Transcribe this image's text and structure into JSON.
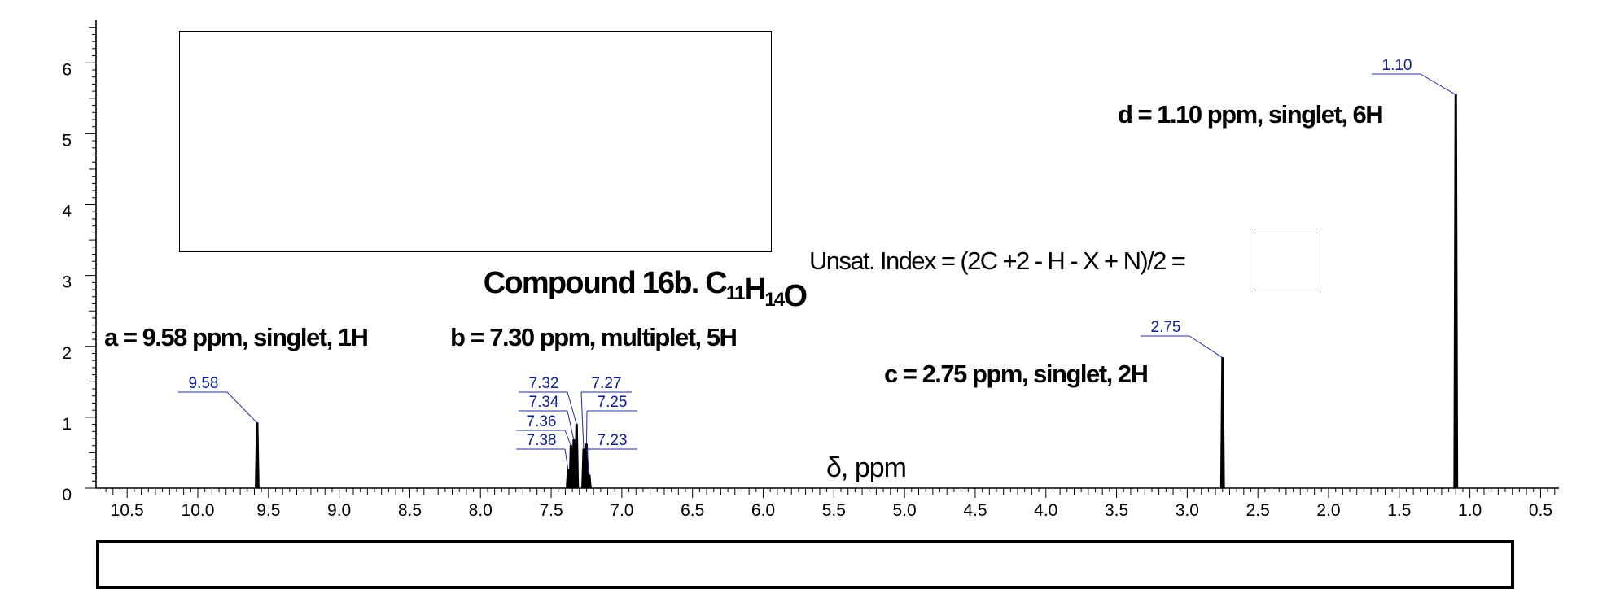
{
  "chart_data": {
    "type": "line",
    "title": "Compound 16b.",
    "formula": [
      {
        "t": "C",
        "sub": "11"
      },
      {
        "t": "H",
        "sub": "14"
      },
      {
        "t": "O",
        "sub": ""
      }
    ],
    "xlabel": "δ, ppm",
    "ylabel": "",
    "xlim": [
      10.72,
      0.37
    ],
    "ylim": [
      0,
      6.6
    ],
    "x_ticks": [
      "10.5",
      "10.0",
      "9.5",
      "9.0",
      "8.5",
      "8.0",
      "7.5",
      "7.0",
      "6.5",
      "6.0",
      "5.5",
      "5.0",
      "4.5",
      "4.0",
      "3.5",
      "3.0",
      "2.5",
      "2.0",
      "1.5",
      "1.0",
      "0.5"
    ],
    "y_ticks": [
      "0",
      "1",
      "2",
      "3",
      "4",
      "5",
      "6"
    ],
    "peaks": [
      {
        "x": 9.58,
        "y": 0.92
      },
      {
        "x": 7.38,
        "y": 0.26
      },
      {
        "x": 7.36,
        "y": 0.6
      },
      {
        "x": 7.34,
        "y": 0.68
      },
      {
        "x": 7.32,
        "y": 0.9
      },
      {
        "x": 7.27,
        "y": 0.55
      },
      {
        "x": 7.25,
        "y": 0.62
      },
      {
        "x": 7.23,
        "y": 0.18
      },
      {
        "x": 2.75,
        "y": 1.84
      },
      {
        "x": 1.1,
        "y": 5.55
      }
    ],
    "peak_labels": [
      {
        "text": "9.58",
        "x": 9.58
      },
      {
        "text": "7.32",
        "x": 7.32
      },
      {
        "text": "7.34",
        "x": 7.34
      },
      {
        "text": "7.36",
        "x": 7.36
      },
      {
        "text": "7.38",
        "x": 7.38
      },
      {
        "text": "7.27",
        "x": 7.27
      },
      {
        "text": "7.25",
        "x": 7.25
      },
      {
        "text": "7.23",
        "x": 7.23
      },
      {
        "text": "2.75",
        "x": 2.75
      },
      {
        "text": "1.10",
        "x": 1.1
      }
    ],
    "grid": false
  },
  "annotations": {
    "a": "a = 9.58 ppm, singlet, 1H",
    "b": "b = 7.30 ppm, multiplet, 5H",
    "c": "c = 2.75 ppm, singlet, 2H",
    "d": "d = 1.10 ppm, singlet, 6H",
    "unsat": "Unsat. Index = (2C +2 - H - X + N)/2 ="
  }
}
